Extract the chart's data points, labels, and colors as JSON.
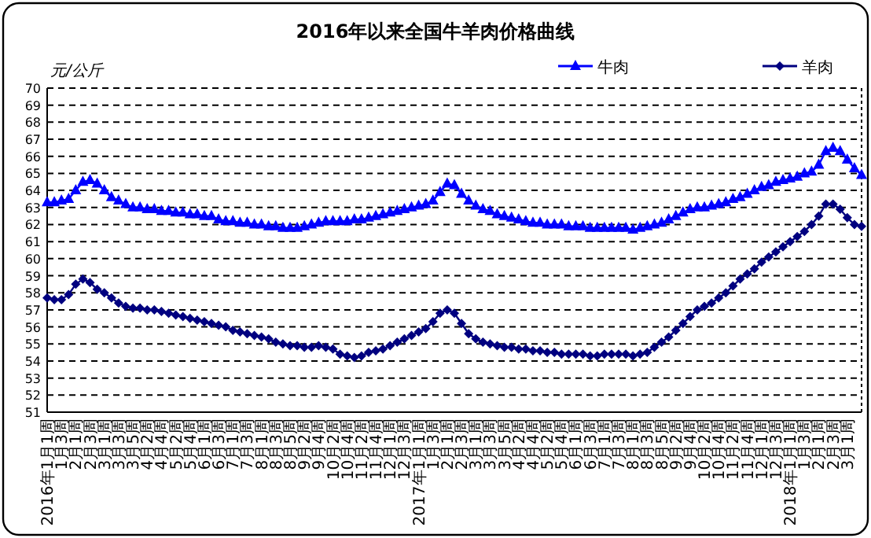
{
  "chart_data": {
    "type": "line",
    "title": "2016年以来全国牛羊肉价格曲线",
    "ylabel": "元/公斤",
    "categories": [
      "2016年1月1周",
      null,
      "1月3周",
      null,
      "2月1周",
      null,
      "2月3周",
      null,
      "3月1周",
      null,
      "3月3周",
      null,
      "3月5周",
      null,
      "4月2周",
      null,
      "4月4周",
      null,
      "5月2周",
      null,
      "5月4周",
      null,
      "6月1周",
      null,
      "6月3周",
      null,
      "7月1周",
      null,
      "7月3周",
      null,
      "8月1周",
      null,
      "8月3周",
      null,
      "8月5周",
      null,
      "9月2周",
      null,
      "9月4周",
      null,
      "10月2周",
      null,
      "10月4周",
      null,
      "11月2周",
      null,
      "11月4周",
      null,
      "12月1周",
      null,
      "12月3周",
      null,
      "2017年1月1周",
      null,
      "1月3周",
      null,
      "2月1周",
      null,
      "2月3周",
      null,
      "3月1周",
      null,
      "3月3周",
      null,
      "3月5周",
      null,
      "4月2周",
      null,
      "4月4周",
      null,
      "5月2周",
      null,
      "5月4周",
      null,
      "6月1周",
      null,
      "6月3周",
      null,
      "7月1周",
      null,
      "7月3周",
      null,
      "8月1周",
      null,
      "8月3周",
      null,
      "8月5周",
      null,
      "9月2周",
      null,
      "9月4周",
      null,
      "10月2周",
      null,
      "10月4周",
      null,
      "11月2周",
      null,
      "11月4周",
      null,
      "12月1周",
      null,
      "12月3周",
      null,
      "2018年1月1周",
      null,
      "1月3周",
      null,
      "2月1周",
      null,
      "2月3周",
      null,
      "3月1周",
      null,
      null
    ],
    "series": [
      {
        "name": "牛肉",
        "color": "#0000ff",
        "marker": "triangle",
        "values": [
          63.3,
          63.3,
          63.4,
          63.5,
          64.0,
          64.5,
          64.6,
          64.4,
          64.0,
          63.6,
          63.4,
          63.2,
          63.0,
          63.0,
          62.9,
          62.9,
          62.8,
          62.8,
          62.7,
          62.7,
          62.6,
          62.6,
          62.5,
          62.5,
          62.3,
          62.2,
          62.2,
          62.1,
          62.1,
          62.0,
          62.0,
          61.9,
          61.9,
          61.8,
          61.8,
          61.8,
          61.9,
          62.0,
          62.1,
          62.2,
          62.2,
          62.2,
          62.2,
          62.3,
          62.3,
          62.4,
          62.5,
          62.6,
          62.7,
          62.8,
          62.9,
          63.0,
          63.1,
          63.2,
          63.4,
          63.9,
          64.4,
          64.3,
          63.8,
          63.4,
          63.1,
          62.9,
          62.8,
          62.6,
          62.5,
          62.4,
          62.3,
          62.2,
          62.1,
          62.1,
          62.0,
          62.0,
          62.0,
          61.9,
          61.9,
          61.9,
          61.8,
          61.8,
          61.8,
          61.8,
          61.8,
          61.8,
          61.7,
          61.8,
          61.9,
          62.0,
          62.1,
          62.3,
          62.5,
          62.7,
          62.9,
          63.0,
          63.0,
          63.1,
          63.2,
          63.3,
          63.5,
          63.6,
          63.8,
          64.0,
          64.2,
          64.3,
          64.5,
          64.6,
          64.7,
          64.8,
          65.0,
          65.1,
          65.5,
          66.3,
          66.5,
          66.3,
          65.8,
          65.3,
          64.9
        ]
      },
      {
        "name": "羊肉",
        "color": "#000080",
        "marker": "diamond",
        "values": [
          57.7,
          57.6,
          57.6,
          57.9,
          58.5,
          58.8,
          58.6,
          58.2,
          58.0,
          57.7,
          57.4,
          57.2,
          57.1,
          57.1,
          57.0,
          57.0,
          56.9,
          56.8,
          56.7,
          56.6,
          56.5,
          56.4,
          56.3,
          56.2,
          56.1,
          56.0,
          55.8,
          55.7,
          55.6,
          55.5,
          55.4,
          55.3,
          55.1,
          55.0,
          54.9,
          54.9,
          54.8,
          54.8,
          54.9,
          54.8,
          54.7,
          54.4,
          54.3,
          54.2,
          54.3,
          54.5,
          54.6,
          54.7,
          54.9,
          55.1,
          55.3,
          55.5,
          55.7,
          55.9,
          56.3,
          56.8,
          57.0,
          56.8,
          56.2,
          55.6,
          55.3,
          55.1,
          55.0,
          54.9,
          54.8,
          54.8,
          54.7,
          54.7,
          54.6,
          54.6,
          54.5,
          54.5,
          54.4,
          54.4,
          54.4,
          54.4,
          54.3,
          54.3,
          54.4,
          54.4,
          54.4,
          54.4,
          54.3,
          54.4,
          54.5,
          54.8,
          55.1,
          55.4,
          55.8,
          56.2,
          56.6,
          57.0,
          57.2,
          57.4,
          57.7,
          58.0,
          58.4,
          58.8,
          59.1,
          59.4,
          59.8,
          60.1,
          60.4,
          60.7,
          61.0,
          61.3,
          61.6,
          62.0,
          62.5,
          63.2,
          63.2,
          62.9,
          62.4,
          62.0,
          61.9
        ]
      }
    ],
    "ylim": [
      51,
      70
    ],
    "yticks": [
      51,
      52,
      53,
      54,
      55,
      56,
      57,
      58,
      59,
      60,
      61,
      62,
      63,
      64,
      65,
      66,
      67,
      68,
      69,
      70
    ],
    "grid": "y",
    "legend": "top right",
    "line_style": "solid"
  }
}
